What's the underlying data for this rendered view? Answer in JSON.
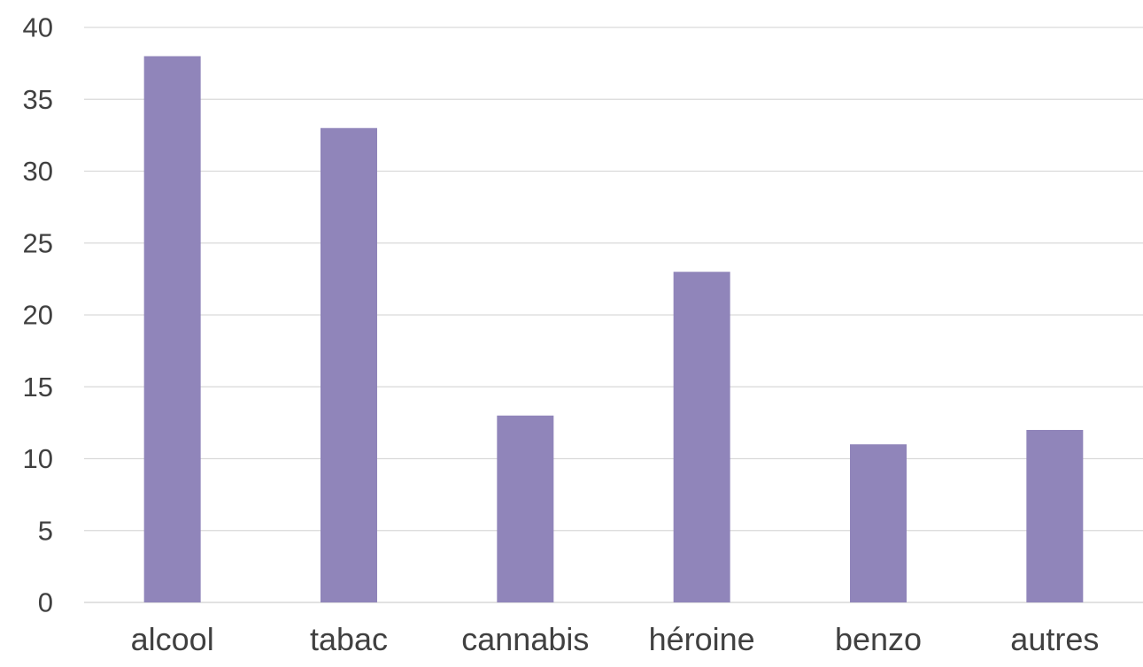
{
  "chart_data": {
    "type": "bar",
    "title": "",
    "xlabel": "",
    "ylabel": "",
    "categories": [
      "alcool",
      "tabac",
      "cannabis",
      "héroine",
      "benzo",
      "autres"
    ],
    "values": [
      38,
      33,
      13,
      23,
      11,
      12
    ],
    "ylim": [
      0,
      40
    ],
    "yticks": [
      0,
      5,
      10,
      15,
      20,
      25,
      30,
      35,
      40
    ],
    "ytick_labels": [
      "0",
      "5",
      "10",
      "15",
      "20",
      "25",
      "30",
      "35",
      "40"
    ],
    "grid": true,
    "legend": "none",
    "bar_color": "#9085BA",
    "gridline_color": "#D9D9D9",
    "text_color": "#404040"
  }
}
